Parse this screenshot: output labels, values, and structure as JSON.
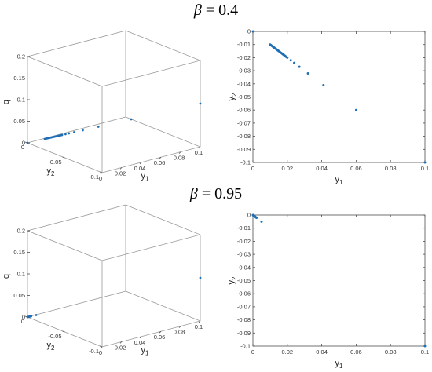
{
  "titles": [
    {
      "prefix": "β",
      "rest": " = 0.4"
    },
    {
      "prefix": "β",
      "rest": " = 0.95"
    }
  ],
  "colors": {
    "marker": "#1f6fb5",
    "axis": "#4d4d4d",
    "box": "#999999"
  },
  "chart_data": [
    {
      "type": "scatter",
      "view": "3d",
      "panel": "beta_0.4_3d",
      "xlabel": "y1",
      "ylabel": "y2",
      "zlabel": "q",
      "xlim": [
        0,
        0.1
      ],
      "ylim": [
        -0.1,
        0
      ],
      "zlim": [
        0,
        0.2
      ],
      "xticks": [
        "0",
        "0.02",
        "0.04",
        "0.06",
        "0.08",
        "0.1"
      ],
      "yticks": [
        "-0.1",
        "-0.05",
        "0"
      ],
      "zticks": [
        "0",
        "0.05",
        "0.1",
        "0.15",
        "0.2"
      ],
      "points": [
        {
          "x": 0,
          "y": 0,
          "z": 0
        },
        {
          "x": 0.01,
          "y": -0.01,
          "z": 0.01
        },
        {
          "x": 0.0105,
          "y": -0.0105,
          "z": 0.0105
        },
        {
          "x": 0.011,
          "y": -0.011,
          "z": 0.011
        },
        {
          "x": 0.0115,
          "y": -0.0115,
          "z": 0.0115
        },
        {
          "x": 0.012,
          "y": -0.012,
          "z": 0.012
        },
        {
          "x": 0.0125,
          "y": -0.0125,
          "z": 0.0125
        },
        {
          "x": 0.013,
          "y": -0.013,
          "z": 0.013
        },
        {
          "x": 0.0135,
          "y": -0.0135,
          "z": 0.0135
        },
        {
          "x": 0.014,
          "y": -0.014,
          "z": 0.014
        },
        {
          "x": 0.0145,
          "y": -0.0145,
          "z": 0.0145
        },
        {
          "x": 0.015,
          "y": -0.015,
          "z": 0.015
        },
        {
          "x": 0.0155,
          "y": -0.0155,
          "z": 0.0155
        },
        {
          "x": 0.016,
          "y": -0.016,
          "z": 0.016
        },
        {
          "x": 0.0165,
          "y": -0.0165,
          "z": 0.0165
        },
        {
          "x": 0.017,
          "y": -0.017,
          "z": 0.017
        },
        {
          "x": 0.0175,
          "y": -0.0175,
          "z": 0.0175
        },
        {
          "x": 0.018,
          "y": -0.018,
          "z": 0.018
        },
        {
          "x": 0.0185,
          "y": -0.0185,
          "z": 0.0185
        },
        {
          "x": 0.019,
          "y": -0.019,
          "z": 0.019
        },
        {
          "x": 0.0195,
          "y": -0.0195,
          "z": 0.0195
        },
        {
          "x": 0.02,
          "y": -0.02,
          "z": 0.02
        },
        {
          "x": 0.022,
          "y": -0.022,
          "z": 0.022
        },
        {
          "x": 0.024,
          "y": -0.024,
          "z": 0.024
        },
        {
          "x": 0.027,
          "y": -0.027,
          "z": 0.027
        },
        {
          "x": 0.032,
          "y": -0.032,
          "z": 0.032
        },
        {
          "x": 0.041,
          "y": -0.041,
          "z": 0.041
        },
        {
          "x": 0.06,
          "y": -0.06,
          "z": 0.06
        },
        {
          "x": 0.1,
          "y": -0.1,
          "z": 0.1
        }
      ]
    },
    {
      "type": "scatter",
      "view": "2d",
      "panel": "beta_0.4_2d",
      "xlabel": "y1",
      "ylabel": "y2",
      "xlim": [
        0,
        0.1
      ],
      "ylim": [
        -0.1,
        0
      ],
      "xticks": [
        "0",
        "0.02",
        "0.04",
        "0.06",
        "0.08",
        "0.1"
      ],
      "yticks": [
        "0",
        "-0.01",
        "-0.02",
        "-0.03",
        "-0.04",
        "-0.05",
        "-0.06",
        "-0.07",
        "-0.08",
        "-0.09",
        "-0.1"
      ],
      "points": [
        {
          "x": 0,
          "y": 0
        },
        {
          "x": 0.01,
          "y": -0.01
        },
        {
          "x": 0.0105,
          "y": -0.0105
        },
        {
          "x": 0.011,
          "y": -0.011
        },
        {
          "x": 0.0115,
          "y": -0.0115
        },
        {
          "x": 0.012,
          "y": -0.012
        },
        {
          "x": 0.0125,
          "y": -0.0125
        },
        {
          "x": 0.013,
          "y": -0.013
        },
        {
          "x": 0.0135,
          "y": -0.0135
        },
        {
          "x": 0.014,
          "y": -0.014
        },
        {
          "x": 0.0145,
          "y": -0.0145
        },
        {
          "x": 0.015,
          "y": -0.015
        },
        {
          "x": 0.0155,
          "y": -0.0155
        },
        {
          "x": 0.016,
          "y": -0.016
        },
        {
          "x": 0.0165,
          "y": -0.0165
        },
        {
          "x": 0.017,
          "y": -0.017
        },
        {
          "x": 0.0175,
          "y": -0.0175
        },
        {
          "x": 0.018,
          "y": -0.018
        },
        {
          "x": 0.0185,
          "y": -0.0185
        },
        {
          "x": 0.019,
          "y": -0.019
        },
        {
          "x": 0.0195,
          "y": -0.0195
        },
        {
          "x": 0.02,
          "y": -0.02
        },
        {
          "x": 0.022,
          "y": -0.022
        },
        {
          "x": 0.024,
          "y": -0.024
        },
        {
          "x": 0.027,
          "y": -0.027
        },
        {
          "x": 0.032,
          "y": -0.032
        },
        {
          "x": 0.041,
          "y": -0.041
        },
        {
          "x": 0.06,
          "y": -0.06
        },
        {
          "x": 0.1,
          "y": -0.1
        }
      ]
    },
    {
      "type": "scatter",
      "view": "3d",
      "panel": "beta_0.95_3d",
      "xlabel": "y1",
      "ylabel": "y2",
      "zlabel": "q",
      "xlim": [
        0,
        0.1
      ],
      "ylim": [
        -0.1,
        0
      ],
      "zlim": [
        0,
        0.2
      ],
      "xticks": [
        "0",
        "0.02",
        "0.04",
        "0.06",
        "0.08",
        "0.1"
      ],
      "yticks": [
        "-0.1",
        "-0.05",
        "0"
      ],
      "zticks": [
        "0",
        "0.05",
        "0.1",
        "0.15",
        "0.2"
      ],
      "points": [
        {
          "x": 0,
          "y": 0,
          "z": 0
        },
        {
          "x": 0.0002,
          "y": -0.0002,
          "z": 0.0002
        },
        {
          "x": 0.0004,
          "y": -0.0004,
          "z": 0.0004
        },
        {
          "x": 0.0006,
          "y": -0.0006,
          "z": 0.0006
        },
        {
          "x": 0.0008,
          "y": -0.0008,
          "z": 0.0008
        },
        {
          "x": 0.001,
          "y": -0.001,
          "z": 0.001
        },
        {
          "x": 0.0012,
          "y": -0.0012,
          "z": 0.0012
        },
        {
          "x": 0.0014,
          "y": -0.0014,
          "z": 0.0014
        },
        {
          "x": 0.0017,
          "y": -0.0017,
          "z": 0.0017
        },
        {
          "x": 0.0021,
          "y": -0.0021,
          "z": 0.0021
        },
        {
          "x": 0.005,
          "y": -0.005,
          "z": 0.005
        },
        {
          "x": 0.1,
          "y": -0.1,
          "z": 0.1
        }
      ]
    },
    {
      "type": "scatter",
      "view": "2d",
      "panel": "beta_0.95_2d",
      "xlabel": "y1",
      "ylabel": "y2",
      "xlim": [
        0,
        0.1
      ],
      "ylim": [
        -0.1,
        0
      ],
      "xticks": [
        "0",
        "0.02",
        "0.04",
        "0.06",
        "0.08",
        "0.1"
      ],
      "yticks": [
        "0",
        "-0.01",
        "-0.02",
        "-0.03",
        "-0.04",
        "-0.05",
        "-0.06",
        "-0.07",
        "-0.08",
        "-0.09",
        "-0.1"
      ],
      "points": [
        {
          "x": 0,
          "y": 0
        },
        {
          "x": 0.0002,
          "y": -0.0002
        },
        {
          "x": 0.0004,
          "y": -0.0004
        },
        {
          "x": 0.0006,
          "y": -0.0006
        },
        {
          "x": 0.0008,
          "y": -0.0008
        },
        {
          "x": 0.001,
          "y": -0.001
        },
        {
          "x": 0.0012,
          "y": -0.0012
        },
        {
          "x": 0.0014,
          "y": -0.0014
        },
        {
          "x": 0.0017,
          "y": -0.0017
        },
        {
          "x": 0.0021,
          "y": -0.0021
        },
        {
          "x": 0.005,
          "y": -0.005
        },
        {
          "x": 0.1,
          "y": -0.1
        }
      ]
    }
  ]
}
